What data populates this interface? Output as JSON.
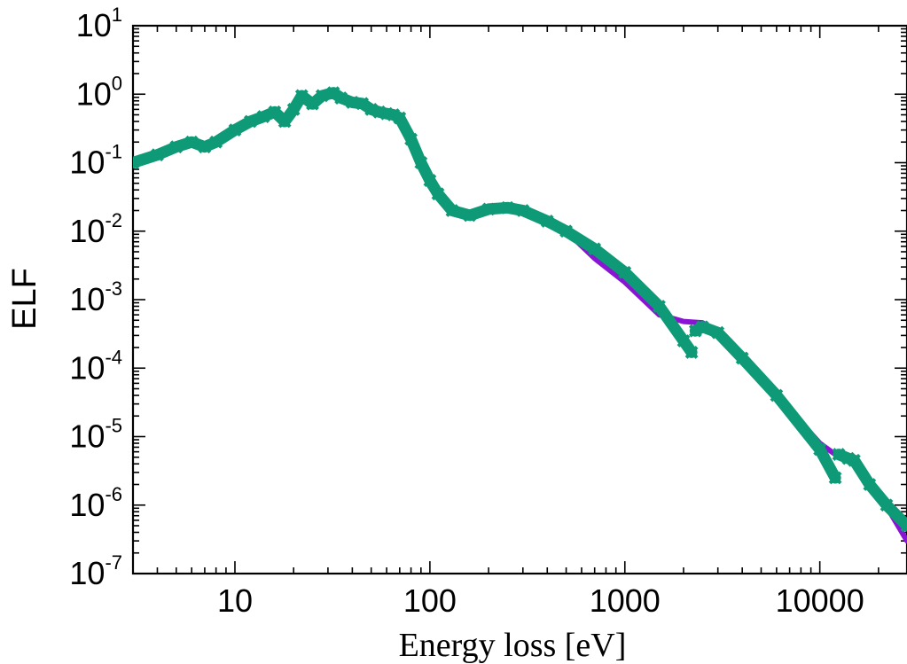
{
  "chart_data": {
    "type": "line",
    "title": "",
    "xlabel": "Energy loss [eV]",
    "ylabel": "ELF",
    "xscale": "log",
    "yscale": "log",
    "xlim": [
      3,
      28000
    ],
    "ylim": [
      1e-07,
      10
    ],
    "x_ticks": [
      {
        "value": 10,
        "label": "10"
      },
      {
        "value": 100,
        "label": "100"
      },
      {
        "value": 1000,
        "label": "1000"
      },
      {
        "value": 10000,
        "label": "10000"
      }
    ],
    "y_ticks": [
      {
        "value": 10.0,
        "base": "10",
        "exp": "1"
      },
      {
        "value": 1.0,
        "base": "10",
        "exp": "0"
      },
      {
        "value": 0.1,
        "base": "10",
        "exp": "-1"
      },
      {
        "value": 0.01,
        "base": "10",
        "exp": "-2"
      },
      {
        "value": 0.001,
        "base": "10",
        "exp": "-3"
      },
      {
        "value": 0.0001,
        "base": "10",
        "exp": "-4"
      },
      {
        "value": 1e-05,
        "base": "10",
        "exp": "-5"
      },
      {
        "value": 1e-06,
        "base": "10",
        "exp": "-6"
      },
      {
        "value": 1e-07,
        "base": "10",
        "exp": "-7"
      }
    ],
    "grid": false,
    "legend": "none",
    "series": [
      {
        "color": "#8a14d4",
        "style": "line",
        "segments": [
          [
            [
              3,
              0.09
            ],
            [
              4,
              0.13
            ],
            [
              5,
              0.17
            ],
            [
              6,
              0.19
            ],
            [
              7,
              0.17
            ],
            [
              8,
              0.2
            ],
            [
              10,
              0.3
            ],
            [
              12,
              0.4
            ],
            [
              14,
              0.47
            ],
            [
              16,
              0.52
            ],
            [
              18,
              0.4
            ],
            [
              20,
              0.6
            ],
            [
              22,
              0.9
            ],
            [
              25,
              0.7
            ],
            [
              28,
              0.95
            ],
            [
              32,
              1.0
            ],
            [
              35,
              0.85
            ],
            [
              40,
              0.75
            ],
            [
              45,
              0.72
            ],
            [
              50,
              0.6
            ],
            [
              55,
              0.55
            ],
            [
              60,
              0.5
            ],
            [
              65,
              0.5
            ],
            [
              70,
              0.45
            ],
            [
              80,
              0.2
            ],
            [
              90,
              0.08
            ],
            [
              100,
              0.045
            ],
            [
              110,
              0.03
            ],
            [
              130,
              0.02
            ],
            [
              160,
              0.018
            ],
            [
              200,
              0.02
            ],
            [
              250,
              0.022
            ],
            [
              300,
              0.021
            ],
            [
              400,
              0.015
            ],
            [
              500,
              0.01
            ],
            [
              700,
              0.004
            ],
            [
              1000,
              0.0018
            ],
            [
              1500,
              0.0006
            ],
            [
              2000,
              0.00048
            ],
            [
              2500,
              0.00046
            ],
            [
              3000,
              0.00035
            ],
            [
              4000,
              0.00012
            ],
            [
              6000,
              4e-05
            ],
            [
              10000,
              8e-06
            ],
            [
              12000,
              5.5e-06
            ],
            [
              15000,
              4.5e-06
            ],
            [
              20000,
              1.5e-06
            ],
            [
              28000,
              3e-07
            ]
          ]
        ]
      },
      {
        "color": "#0e9a76",
        "style": "line-markers",
        "segments": [
          [
            [
              3,
              0.1
            ],
            [
              4,
              0.13
            ],
            [
              5,
              0.17
            ],
            [
              6,
              0.2
            ],
            [
              7,
              0.17
            ],
            [
              8,
              0.2
            ],
            [
              10,
              0.3
            ],
            [
              12,
              0.4
            ],
            [
              14,
              0.47
            ],
            [
              16,
              0.55
            ],
            [
              18,
              0.4
            ],
            [
              20,
              0.6
            ],
            [
              22,
              0.95
            ],
            [
              25,
              0.72
            ],
            [
              28,
              0.95
            ],
            [
              32,
              1.05
            ],
            [
              35,
              0.88
            ],
            [
              40,
              0.76
            ],
            [
              45,
              0.73
            ],
            [
              50,
              0.6
            ],
            [
              55,
              0.55
            ],
            [
              60,
              0.52
            ],
            [
              65,
              0.5
            ],
            [
              70,
              0.45
            ],
            [
              80,
              0.22
            ],
            [
              90,
              0.1
            ],
            [
              100,
              0.055
            ],
            [
              110,
              0.035
            ],
            [
              130,
              0.02
            ],
            [
              160,
              0.017
            ],
            [
              200,
              0.021
            ],
            [
              250,
              0.022
            ],
            [
              300,
              0.02
            ],
            [
              400,
              0.014
            ],
            [
              500,
              0.01
            ],
            [
              700,
              0.0055
            ],
            [
              1000,
              0.0025
            ],
            [
              1500,
              0.0008
            ],
            [
              2000,
              0.00025
            ],
            [
              2200,
              0.00017
            ]
          ],
          [
            [
              2300,
              0.00035
            ],
            [
              2500,
              0.0004
            ],
            [
              3000,
              0.00033
            ],
            [
              4000,
              0.00014
            ],
            [
              6000,
              4e-05
            ],
            [
              10000,
              6.5e-06
            ],
            [
              12000,
              2.5e-06
            ]
          ],
          [
            [
              12500,
              5.5e-06
            ],
            [
              14000,
              4.8e-06
            ],
            [
              15000,
              4.5e-06
            ],
            [
              18000,
              2e-06
            ],
            [
              22000,
              1e-06
            ],
            [
              28000,
              5e-07
            ]
          ]
        ]
      }
    ]
  }
}
